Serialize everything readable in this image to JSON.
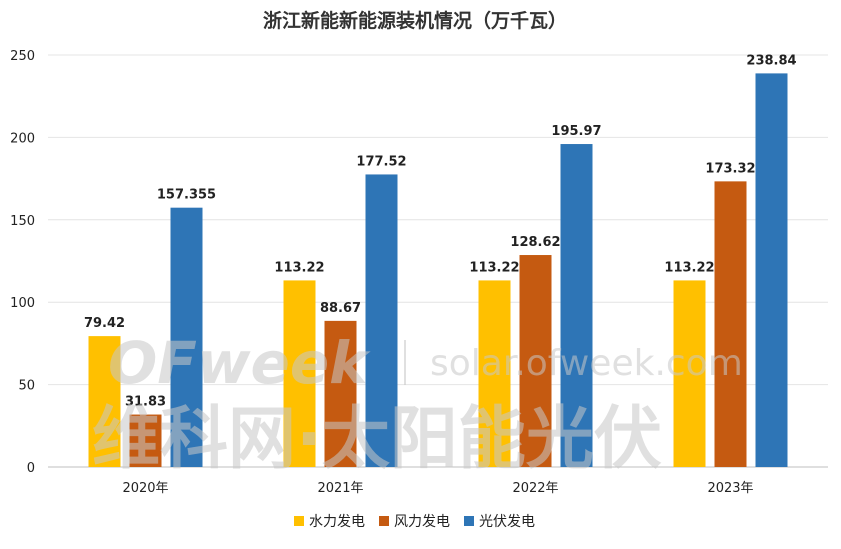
{
  "chart_data": {
    "type": "bar",
    "title": "浙江新能新能源装机情况（万千瓦）",
    "categories": [
      "2020年",
      "2021年",
      "2022年",
      "2023年"
    ],
    "series": [
      {
        "name": "水力发电",
        "color": "#FFC000",
        "values": [
          79.42,
          113.22,
          113.22,
          113.22
        ],
        "labels": [
          "79.42",
          "113.22",
          "113.22",
          "113.22"
        ]
      },
      {
        "name": "风力发电",
        "color": "#C55A11",
        "values": [
          31.83,
          88.67,
          128.62,
          173.32
        ],
        "labels": [
          "31.83",
          "88.67",
          "128.62",
          "173.32"
        ]
      },
      {
        "name": "光伏发电",
        "color": "#2E75B6",
        "values": [
          157.355,
          177.52,
          195.97,
          238.84
        ],
        "labels": [
          "157.355",
          "177.52",
          "195.97",
          "238.84"
        ]
      }
    ],
    "yticks": [
      "0",
      "50",
      "100",
      "150",
      "200",
      "250"
    ],
    "ylim": [
      0,
      250
    ],
    "grid": true,
    "legend_position": "bottom"
  },
  "watermark": {
    "logo": "OFweek",
    "site": "solar.ofweek.com",
    "cn": "维科网·太阳能光伏"
  }
}
